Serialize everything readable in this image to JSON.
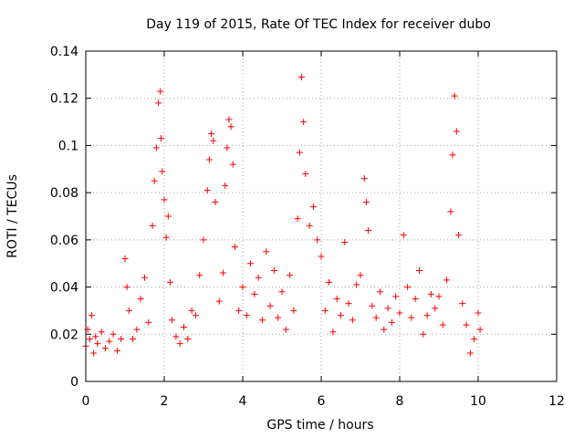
{
  "chart_data": {
    "type": "scatter",
    "title": "Day 119 of 2015, Rate Of TEC Index for receiver dubo",
    "xlabel": "GPS time / hours",
    "ylabel": "ROTI / TECUs",
    "xlim": [
      0,
      12
    ],
    "ylim": [
      0,
      0.14
    ],
    "x_ticks": [
      "0",
      "2",
      "4",
      "6",
      "8",
      "10",
      "12"
    ],
    "y_ticks": [
      "0",
      "0.02",
      "0.04",
      "0.06",
      "0.08",
      "0.1",
      "0.12",
      "0.14"
    ],
    "grid": true,
    "marker": "plus",
    "color": "#ff0000",
    "series": [
      {
        "x": [
          0.0,
          0.05,
          0.1,
          0.15,
          0.2,
          0.25,
          0.3,
          0.4,
          0.5,
          0.6,
          0.7,
          0.8,
          0.9,
          1.0,
          1.05,
          1.1,
          1.2,
          1.3,
          1.4,
          1.5,
          1.6,
          1.7,
          1.75,
          1.8,
          1.85,
          1.9,
          1.92,
          1.95,
          2.0,
          2.05,
          2.1,
          2.15,
          2.2,
          2.3,
          2.4,
          2.5,
          2.6,
          2.7,
          2.8,
          2.9,
          3.0,
          3.1,
          3.15,
          3.2,
          3.25,
          3.3,
          3.4,
          3.5,
          3.55,
          3.6,
          3.65,
          3.7,
          3.75,
          3.8,
          3.9,
          4.0,
          4.1,
          4.2,
          4.3,
          4.4,
          4.5,
          4.6,
          4.7,
          4.8,
          4.9,
          5.0,
          5.1,
          5.2,
          5.3,
          5.4,
          5.45,
          5.5,
          5.55,
          5.6,
          5.7,
          5.8,
          5.9,
          6.0,
          6.1,
          6.2,
          6.3,
          6.4,
          6.5,
          6.6,
          6.7,
          6.8,
          6.9,
          7.0,
          7.1,
          7.15,
          7.2,
          7.3,
          7.4,
          7.5,
          7.6,
          7.7,
          7.8,
          7.9,
          8.0,
          8.1,
          8.2,
          8.3,
          8.4,
          8.5,
          8.6,
          8.7,
          8.8,
          8.9,
          9.0,
          9.1,
          9.2,
          9.3,
          9.35,
          9.4,
          9.45,
          9.5,
          9.6,
          9.7,
          9.8,
          9.9,
          10.0,
          10.05
        ],
        "y": [
          0.015,
          0.022,
          0.018,
          0.028,
          0.012,
          0.019,
          0.016,
          0.021,
          0.014,
          0.017,
          0.02,
          0.013,
          0.018,
          0.052,
          0.04,
          0.03,
          0.018,
          0.022,
          0.035,
          0.044,
          0.025,
          0.066,
          0.085,
          0.099,
          0.118,
          0.123,
          0.103,
          0.089,
          0.077,
          0.061,
          0.07,
          0.042,
          0.026,
          0.019,
          0.016,
          0.023,
          0.018,
          0.03,
          0.028,
          0.045,
          0.06,
          0.081,
          0.094,
          0.105,
          0.102,
          0.076,
          0.034,
          0.046,
          0.083,
          0.099,
          0.111,
          0.108,
          0.092,
          0.057,
          0.03,
          0.04,
          0.028,
          0.05,
          0.037,
          0.044,
          0.026,
          0.055,
          0.032,
          0.047,
          0.027,
          0.038,
          0.022,
          0.045,
          0.03,
          0.069,
          0.097,
          0.129,
          0.11,
          0.088,
          0.066,
          0.074,
          0.06,
          0.053,
          0.03,
          0.042,
          0.021,
          0.035,
          0.028,
          0.059,
          0.033,
          0.026,
          0.041,
          0.045,
          0.086,
          0.076,
          0.064,
          0.032,
          0.027,
          0.038,
          0.022,
          0.031,
          0.025,
          0.036,
          0.029,
          0.062,
          0.04,
          0.027,
          0.035,
          0.047,
          0.02,
          0.028,
          0.037,
          0.031,
          0.036,
          0.024,
          0.043,
          0.072,
          0.096,
          0.121,
          0.106,
          0.062,
          0.033,
          0.024,
          0.012,
          0.018,
          0.029,
          0.022
        ]
      }
    ]
  }
}
